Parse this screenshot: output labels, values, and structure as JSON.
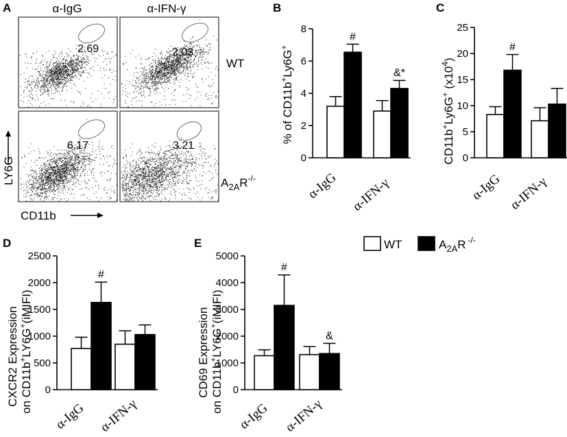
{
  "panels": {
    "a": "A",
    "b": "B",
    "c": "C",
    "d": "D",
    "e": "E"
  },
  "flow": {
    "col_headers": [
      "α-IgG",
      "α-IFN-γ"
    ],
    "row_labels": {
      "wt": "WT",
      "ko_base": "A",
      "ko_sub": "2A",
      "ko_text": "R",
      "ko_sup": "-/-"
    },
    "axis_y": "LY6G",
    "axis_x": "CD11b",
    "gate_values": [
      "2.69",
      "2.03",
      "6.17",
      "3.21"
    ]
  },
  "legend": {
    "wt": "WT",
    "ko_base": "A",
    "ko_sub": "2A",
    "ko_text": "R",
    "ko_sup": "-/-",
    "wt_color": "#ffffff",
    "ko_color": "#000000"
  },
  "chart_data": [
    {
      "id": "B",
      "type": "bar",
      "categories": [
        "α-IgG",
        "α-IFN-γ"
      ],
      "series": [
        {
          "name": "WT",
          "values": [
            3.2,
            2.9
          ],
          "errors": [
            0.6,
            0.65
          ]
        },
        {
          "name": "A2AR-/-",
          "values": [
            6.55,
            4.3
          ],
          "errors": [
            0.5,
            0.5
          ]
        }
      ],
      "ylim": [
        0,
        8
      ],
      "yticks": [
        0,
        2,
        4,
        6,
        8
      ],
      "ylabel": {
        "pre": "% of CD11b",
        "sup1": "+",
        "mid": "Ly6G",
        "sup2": "+"
      },
      "annotations": [
        {
          "series": 1,
          "cat": 0,
          "text": "#"
        },
        {
          "series": 1,
          "cat": 1,
          "text": "&*"
        }
      ]
    },
    {
      "id": "C",
      "type": "bar",
      "categories": [
        "α-IgG",
        "α-IFN-γ"
      ],
      "series": [
        {
          "name": "WT",
          "values": [
            8.3,
            7.1
          ],
          "errors": [
            1.5,
            2.5
          ]
        },
        {
          "name": "A2AR-/-",
          "values": [
            16.8,
            10.3
          ],
          "errors": [
            3.0,
            3.0
          ]
        }
      ],
      "ylim": [
        0,
        25
      ],
      "yticks": [
        0,
        5,
        10,
        15,
        20,
        25
      ],
      "ylabel": {
        "pre": "CD11b",
        "sup1": "+",
        "mid": "Ly6G",
        "sup2": "+",
        "post": " (x10",
        "sup3": "4",
        "end": ")"
      },
      "annotations": [
        {
          "series": 1,
          "cat": 0,
          "text": "#"
        }
      ]
    },
    {
      "id": "D",
      "type": "bar",
      "categories": [
        "α-IgG",
        "α-IFN-γ"
      ],
      "series": [
        {
          "name": "WT",
          "values": [
            770,
            850
          ],
          "errors": [
            210,
            250
          ]
        },
        {
          "name": "A2AR-/-",
          "values": [
            1630,
            1030
          ],
          "errors": [
            380,
            180
          ]
        }
      ],
      "ylim": [
        0,
        2500
      ],
      "yticks": [
        0,
        500,
        1000,
        1500,
        2000,
        2500
      ],
      "ylabel_line1": "CXCR2 Expression",
      "ylabel_line2": {
        "pre": "on CD11b",
        "sup1": "+",
        "mid": "LY6G",
        "sup2": "+",
        "post": "(iMIFI)"
      },
      "annotations": [
        {
          "series": 1,
          "cat": 0,
          "text": "#"
        }
      ]
    },
    {
      "id": "E",
      "type": "bar",
      "categories": [
        "α-IgG",
        "α-IFN-γ"
      ],
      "series": [
        {
          "name": "WT",
          "values": [
            1270,
            1310
          ],
          "errors": [
            220,
            300
          ]
        },
        {
          "name": "A2AR-/-",
          "values": [
            3150,
            1350
          ],
          "errors": [
            1140,
            380
          ]
        }
      ],
      "ylim": [
        0,
        5000
      ],
      "yticks": [
        0,
        1000,
        2000,
        3000,
        4000,
        5000
      ],
      "ylabel_line1": "CD69 Expression",
      "ylabel_line2": {
        "pre": "on CD11b",
        "sup1": "+",
        "mid": "LY6G",
        "sup2": "+",
        "post": "(iMIFI)"
      },
      "annotations": [
        {
          "series": 1,
          "cat": 0,
          "text": "#"
        },
        {
          "series": 1,
          "cat": 1,
          "text": "&"
        }
      ]
    }
  ]
}
